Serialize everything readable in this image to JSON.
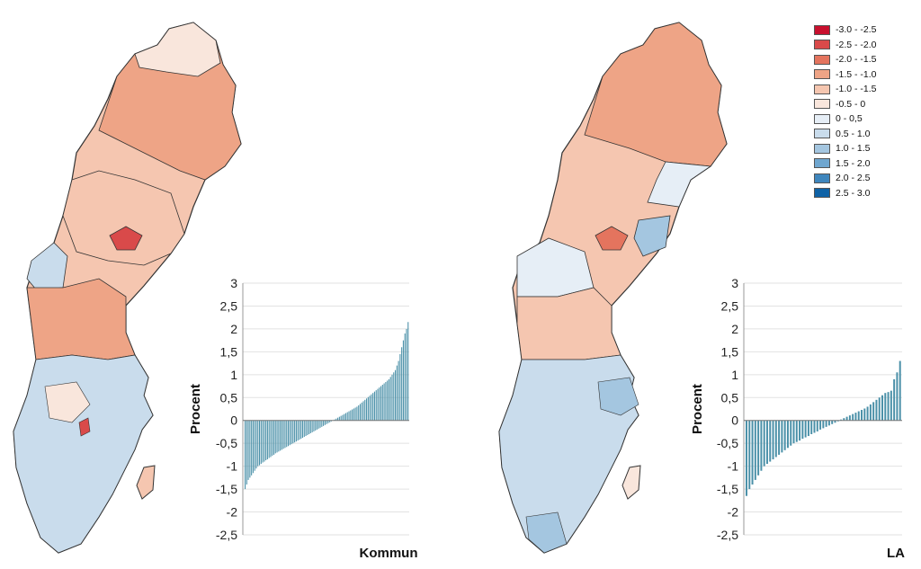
{
  "legend": {
    "items": [
      {
        "label": "-3.0 - -2.5",
        "color": "#c8102e"
      },
      {
        "label": "-2.5 - -2.0",
        "color": "#d94a4a"
      },
      {
        "label": "-2.0 - -1.5",
        "color": "#e4745e"
      },
      {
        "label": "-1.5 - -1.0",
        "color": "#eea486"
      },
      {
        "label": "-1.0 - -1.5",
        "color": "#f5c6b0"
      },
      {
        "label": "-0.5 - 0",
        "color": "#f9e6dc"
      },
      {
        "label": "0 - 0,5",
        "color": "#e6eef6"
      },
      {
        "label": "0.5 - 1.0",
        "color": "#c9dcec"
      },
      {
        "label": "1.0 - 1.5",
        "color": "#a4c6e0"
      },
      {
        "label": "1.5 - 2.0",
        "color": "#6fa6cf"
      },
      {
        "label": "2.0 - 2.5",
        "color": "#3f86bd"
      },
      {
        "label": "2.5 - 3.0",
        "color": "#0f62a6"
      }
    ]
  },
  "maps": [
    {
      "name": "Kommun"
    },
    {
      "name": "LA"
    }
  ],
  "chart_data": [
    {
      "type": "bar",
      "series_color": "#4a90a8",
      "ylabel": "Procent",
      "xlabel": "Kommun",
      "ylim": [
        -2.5,
        3
      ],
      "yticks": [
        "3",
        "2,5",
        "2",
        "1,5",
        "1",
        "0,5",
        "0",
        "-0,5",
        "-1",
        "-1,5",
        "-2",
        "-2,5"
      ],
      "values": [
        -1.5,
        -1.4,
        -1.3,
        -1.25,
        -1.2,
        -1.15,
        -1.1,
        -1.05,
        -1.0,
        -0.98,
        -0.95,
        -0.92,
        -0.9,
        -0.87,
        -0.85,
        -0.82,
        -0.8,
        -0.77,
        -0.75,
        -0.72,
        -0.7,
        -0.68,
        -0.66,
        -0.64,
        -0.62,
        -0.6,
        -0.58,
        -0.56,
        -0.54,
        -0.52,
        -0.5,
        -0.48,
        -0.46,
        -0.44,
        -0.42,
        -0.4,
        -0.38,
        -0.36,
        -0.34,
        -0.32,
        -0.3,
        -0.28,
        -0.26,
        -0.24,
        -0.22,
        -0.2,
        -0.18,
        -0.16,
        -0.14,
        -0.12,
        -0.1,
        -0.08,
        -0.06,
        -0.04,
        -0.02,
        0.0,
        0.02,
        0.04,
        0.06,
        0.08,
        0.1,
        0.12,
        0.14,
        0.16,
        0.18,
        0.2,
        0.22,
        0.24,
        0.26,
        0.28,
        0.3,
        0.33,
        0.36,
        0.39,
        0.42,
        0.45,
        0.48,
        0.51,
        0.54,
        0.57,
        0.6,
        0.63,
        0.66,
        0.69,
        0.72,
        0.75,
        0.78,
        0.81,
        0.84,
        0.87,
        0.9,
        0.95,
        1.0,
        1.05,
        1.1,
        1.2,
        1.3,
        1.45,
        1.6,
        1.75,
        1.9,
        2.0,
        2.15
      ]
    },
    {
      "type": "bar",
      "series_color": "#4a90a8",
      "ylabel": "Procent",
      "xlabel": "LA",
      "ylim": [
        -2.5,
        3
      ],
      "yticks": [
        "3",
        "2,5",
        "2",
        "1,5",
        "1",
        "0,5",
        "0",
        "-0,5",
        "-1",
        "-1,5",
        "-2",
        "-2,5"
      ],
      "values": [
        -1.65,
        -1.5,
        -1.4,
        -1.3,
        -1.2,
        -1.1,
        -1.0,
        -0.95,
        -0.9,
        -0.85,
        -0.8,
        -0.75,
        -0.7,
        -0.65,
        -0.6,
        -0.55,
        -0.5,
        -0.47,
        -0.44,
        -0.4,
        -0.37,
        -0.34,
        -0.3,
        -0.27,
        -0.24,
        -0.2,
        -0.17,
        -0.14,
        -0.11,
        -0.08,
        -0.05,
        -0.02,
        0.02,
        0.05,
        0.08,
        0.11,
        0.14,
        0.17,
        0.2,
        0.23,
        0.26,
        0.3,
        0.35,
        0.4,
        0.45,
        0.5,
        0.55,
        0.6,
        0.62,
        0.65,
        0.9,
        1.05,
        1.3
      ]
    }
  ]
}
